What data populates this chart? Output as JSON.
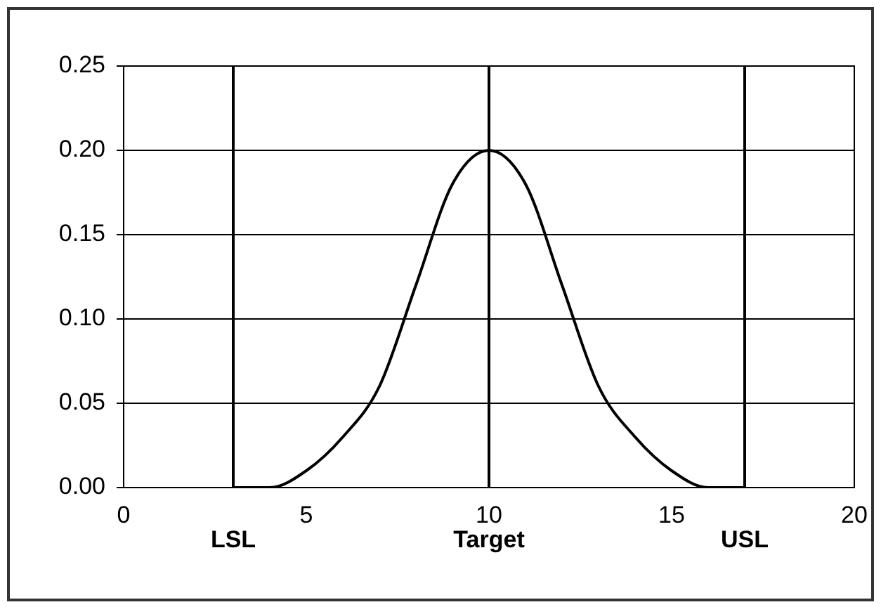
{
  "chart_data": {
    "type": "line",
    "x": [
      3,
      4,
      5,
      6,
      7,
      8,
      9,
      10,
      11,
      12,
      13,
      14,
      15,
      16,
      17
    ],
    "series": [
      {
        "color": "#000000",
        "values": [
          0.0,
          0.0,
          0.01,
          0.03,
          0.06,
          0.12,
          0.18,
          0.2,
          0.18,
          0.12,
          0.06,
          0.03,
          0.01,
          0.0,
          0.0
        ]
      }
    ],
    "xlim": [
      0,
      20
    ],
    "xticks": [
      0,
      5,
      10,
      15,
      20
    ],
    "ylim": [
      0,
      0.25
    ],
    "yticks": [
      {
        "value": 0,
        "label": "0.00"
      },
      {
        "value": 0.05,
        "label": "0.05"
      },
      {
        "value": 0.1,
        "label": "0.10"
      },
      {
        "value": 0.15,
        "label": "0.15"
      },
      {
        "value": 0.2,
        "label": "0.20"
      },
      {
        "value": 0.25,
        "label": "0.25"
      }
    ],
    "grid": "y",
    "marker": "none",
    "line_style": "solid",
    "ref_lines": [
      {
        "axis": "x",
        "value": 3,
        "label": "LSL"
      },
      {
        "axis": "x",
        "value": 10,
        "label": "Target"
      },
      {
        "axis": "x",
        "value": 17,
        "label": "USL"
      }
    ]
  }
}
